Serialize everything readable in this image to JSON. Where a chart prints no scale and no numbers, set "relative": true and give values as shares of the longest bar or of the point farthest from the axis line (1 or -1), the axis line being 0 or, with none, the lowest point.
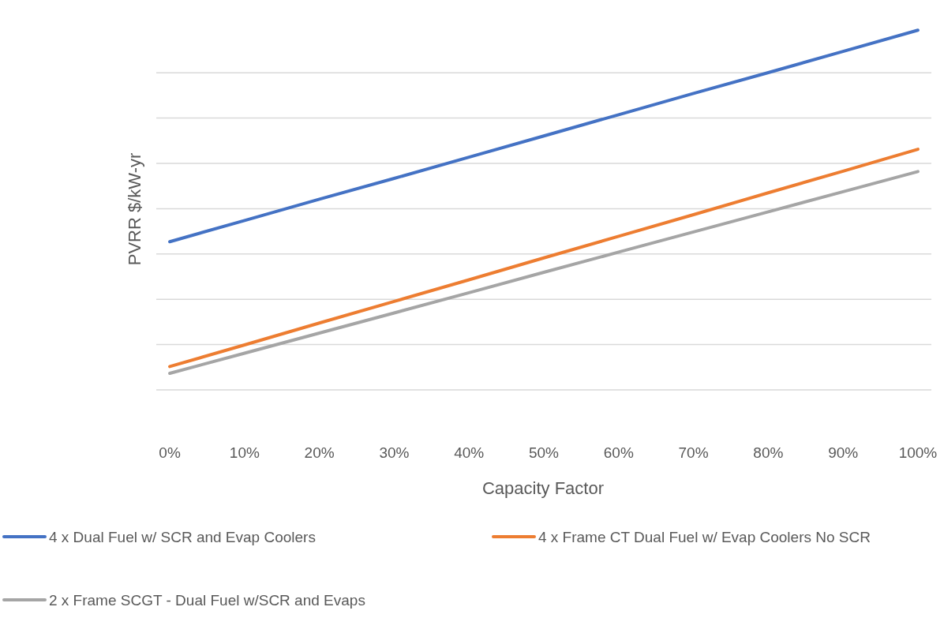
{
  "chart_data": {
    "type": "line",
    "relative": true,
    "xlabel": "Capacity Factor",
    "ylabel": "PVRR $/kW-yr",
    "categories": [
      "0%",
      "10%",
      "20%",
      "30%",
      "40%",
      "50%",
      "60%",
      "70%",
      "80%",
      "90%",
      "100%"
    ],
    "series": [
      {
        "name": "4 x Dual Fuel w/ SCR and Evap Coolers",
        "color": "#4472c4",
        "values": [
          0.412,
          0.471,
          0.53,
          0.588,
          0.647,
          0.706,
          0.765,
          0.824,
          0.882,
          0.941,
          1
        ]
      },
      {
        "name": "4 x Frame CT Dual Fuel w/ Evap Coolers No SCR",
        "color": "#ed7d31",
        "values": [
          0.065,
          0.125,
          0.186,
          0.246,
          0.306,
          0.367,
          0.427,
          0.487,
          0.548,
          0.608,
          0.669
        ]
      },
      {
        "name": "2 x Frame SCGT - Dual Fuel w/SCR and Evaps",
        "color": "#a5a5a5",
        "values": [
          0.046,
          0.102,
          0.158,
          0.214,
          0.27,
          0.327,
          0.383,
          0.439,
          0.495,
          0.551,
          0.607
        ]
      }
    ],
    "grid": "y",
    "legend": "bottom",
    "line_style": "solid"
  }
}
